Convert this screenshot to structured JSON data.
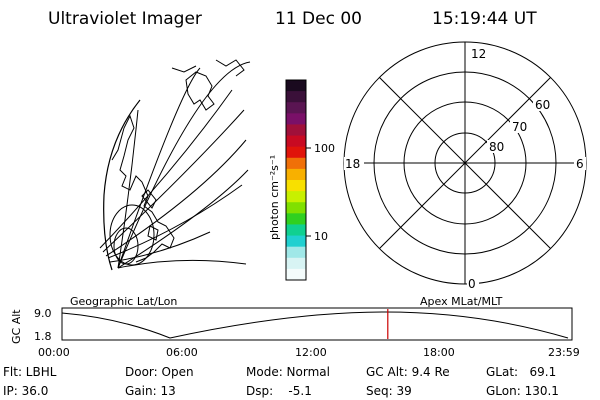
{
  "header": {
    "title": "Ultraviolet Imager",
    "date": "11 Dec 00",
    "time": "15:19:44 UT"
  },
  "colorbar": {
    "label": "photon cm⁻²s⁻¹",
    "ticks": [
      "100",
      "10"
    ],
    "colors": [
      "#1a0a1f",
      "#3a1039",
      "#5a1552",
      "#7a1068",
      "#a0103a",
      "#c80a22",
      "#e0140a",
      "#f07008",
      "#f8b000",
      "#f8e000",
      "#c8f000",
      "#80e000",
      "#30d020",
      "#10d090",
      "#20d0d0",
      "#a0e8e8",
      "#d8f4f4",
      "#f4fcfc"
    ]
  },
  "polar_plot": {
    "mlt_labels": [
      "12",
      "18",
      "6",
      "0"
    ],
    "mlat_labels": [
      "60",
      "70",
      "80"
    ]
  },
  "timeline": {
    "left_label": "Geographic Lat/Lon",
    "right_label": "Apex MLat/MLT",
    "ylabel": "GC Alt",
    "y_ticks": [
      "9.0",
      "1.8"
    ],
    "x_ticks": [
      "00:00",
      "06:00",
      "12:00",
      "18:00",
      "23:59"
    ],
    "cursor_color": "#cc0000",
    "cursor_hour": 15.33
  },
  "status": {
    "filter": "Flt: LBHL",
    "ip": "IP: 36.0",
    "door": "Door: Open",
    "gain": "Gain: 13",
    "mode": "Mode: Normal",
    "dsp": "Dsp:    -5.1",
    "gc_alt": "GC Alt: 9.4 Re",
    "seq": "Seq: 39",
    "glat": "GLat:   69.1",
    "glon": "GLon: 130.1"
  }
}
